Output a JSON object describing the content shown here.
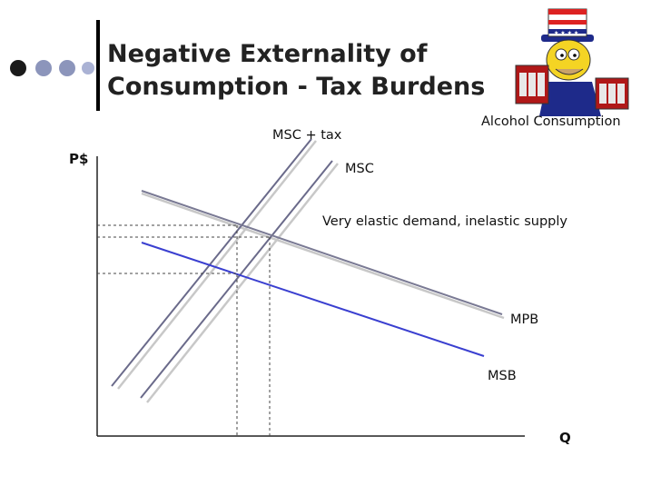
{
  "slide": {
    "title_line1": "Negative Externality of",
    "title_line2": "Consumption - Tax Burdens"
  },
  "image_caption": "Alcohol Consumption",
  "diagram": {
    "y_axis_label": "P$",
    "x_axis_label": "Q",
    "curves": {
      "msc_tax": "MSC + tax",
      "msc": "MSC",
      "mpb": "MPB",
      "msb": "MSB"
    },
    "annotation": "Very elastic demand, inelastic supply"
  },
  "colors": {
    "mpb": "#7a7a94",
    "msb": "#3a3fd0",
    "supply": "#6a6a8a",
    "shadow": "#c8c8c8",
    "bullet_dark": "#1a1a1a",
    "bullet_light": "#8c95bb"
  }
}
